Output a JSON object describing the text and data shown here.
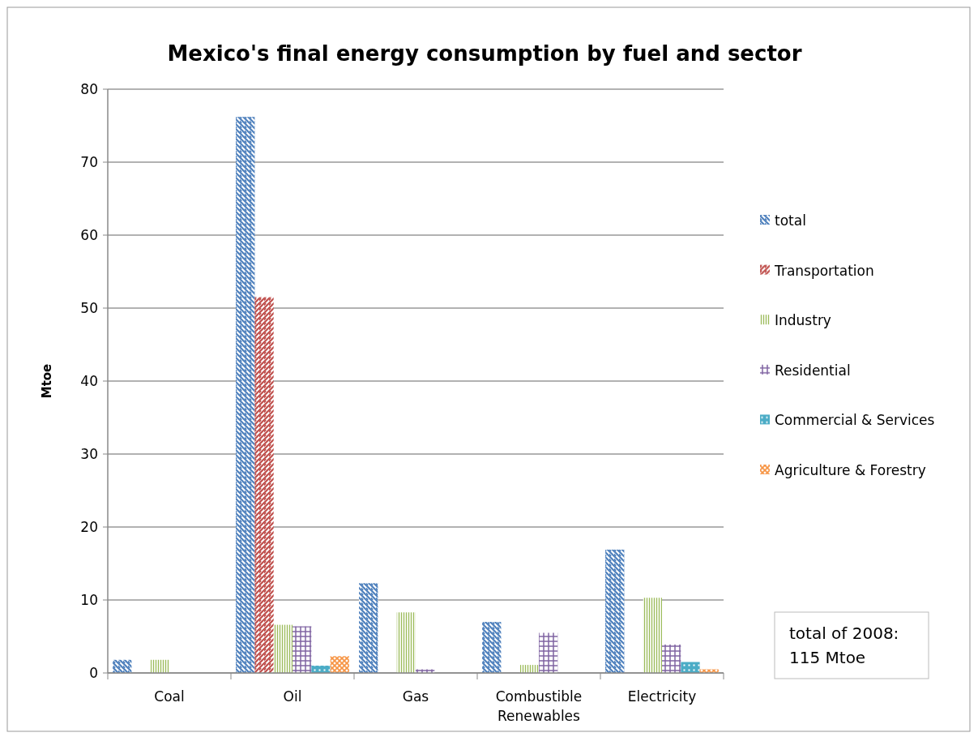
{
  "chart_data": {
    "type": "bar",
    "title": "Mexico's final energy consumption by fuel and sector",
    "ylabel": "Mtoe",
    "categories": [
      "Coal",
      "Oil",
      "Gas",
      "Combustible Renewables",
      "Electricity"
    ],
    "series": [
      {
        "name": "total",
        "color": "#4f81bd",
        "values": [
          1.8,
          76.2,
          12.3,
          7.0,
          16.9
        ]
      },
      {
        "name": "Transportation",
        "color": "#c0504d",
        "values": [
          0,
          51.5,
          0,
          0,
          0
        ]
      },
      {
        "name": "Industry",
        "color": "#9bbb59",
        "values": [
          1.8,
          6.6,
          8.3,
          1.1,
          10.3
        ]
      },
      {
        "name": "Residential",
        "color": "#8064a2",
        "values": [
          0,
          6.4,
          0.5,
          5.5,
          3.9
        ]
      },
      {
        "name": "Commercial & Services",
        "color": "#4bacc6",
        "values": [
          0,
          1.0,
          0,
          0,
          1.5
        ]
      },
      {
        "name": "Agriculture & Forestry",
        "color": "#f79646",
        "values": [
          0,
          2.3,
          0,
          0,
          0.5
        ]
      }
    ],
    "ylim": [
      0,
      80
    ],
    "yticks": [
      0,
      10,
      20,
      30,
      40,
      50,
      60,
      70,
      80
    ],
    "grid": "y",
    "legend": "right",
    "annotations": [
      "total of 2008:\n115 Mtoe"
    ]
  }
}
